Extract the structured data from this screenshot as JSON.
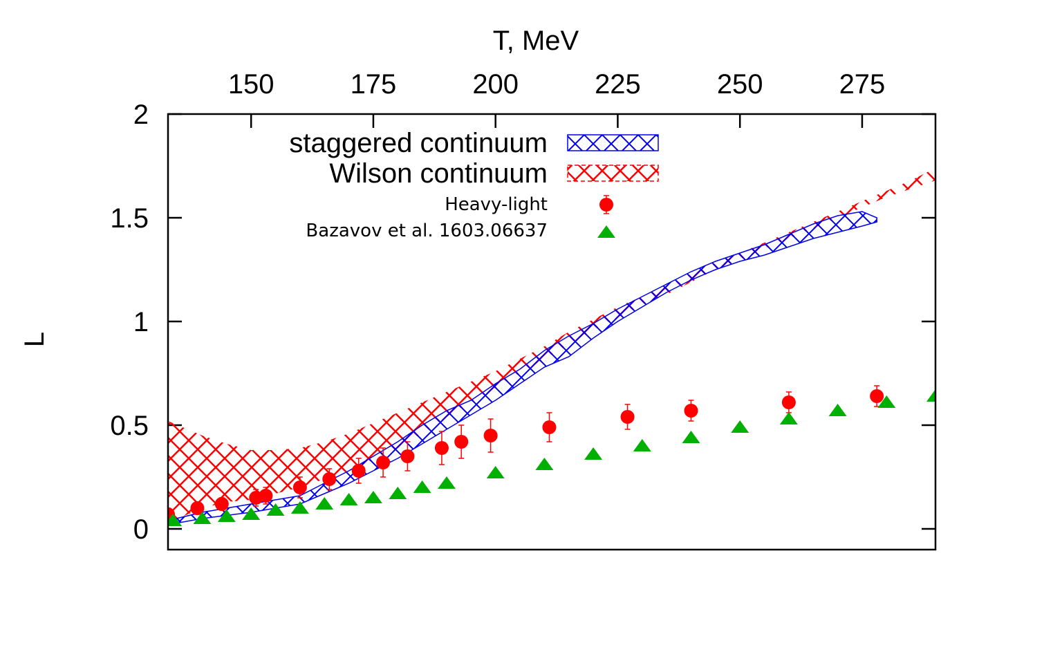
{
  "chart_data": {
    "type": "line",
    "xlabel": "T, MeV",
    "ylabel": "L",
    "xlim": [
      133,
      290
    ],
    "ylim": [
      -0.1,
      2.0
    ],
    "x_ticks": [
      150,
      175,
      200,
      225,
      250,
      275
    ],
    "y_ticks": [
      {
        "value": 0,
        "label": "0"
      },
      {
        "value": 0.5,
        "label": "0.5"
      },
      {
        "value": 1,
        "label": "1"
      },
      {
        "value": 1.5,
        "label": "1.5"
      },
      {
        "value": 2,
        "label": "2"
      }
    ],
    "x_axis_position": "top",
    "grid": false,
    "legend_placement": "top-left",
    "colors": {
      "staggered": "#0000ee",
      "wilson": "#ff0000",
      "heavy_light": "#ff0000",
      "bazavov": "#00b000"
    },
    "series": [
      {
        "name": "staggered continuum",
        "kind": "band",
        "hatch": "crosshatch",
        "x": [
          133,
          140,
          150,
          155,
          160,
          165,
          170,
          175,
          180,
          185,
          190,
          195,
          200,
          205,
          210,
          215,
          220,
          225,
          230,
          235,
          240,
          245,
          250,
          255,
          260,
          265,
          270,
          275,
          278
        ],
        "lower": [
          0.02,
          0.05,
          0.08,
          0.1,
          0.12,
          0.17,
          0.22,
          0.28,
          0.34,
          0.41,
          0.48,
          0.55,
          0.62,
          0.7,
          0.78,
          0.83,
          0.92,
          1.0,
          1.07,
          1.14,
          1.2,
          1.25,
          1.29,
          1.32,
          1.36,
          1.4,
          1.43,
          1.46,
          1.48
        ],
        "upper": [
          0.04,
          0.08,
          0.12,
          0.14,
          0.16,
          0.22,
          0.28,
          0.35,
          0.42,
          0.5,
          0.57,
          0.62,
          0.7,
          0.77,
          0.86,
          0.93,
          0.99,
          1.06,
          1.12,
          1.18,
          1.24,
          1.29,
          1.33,
          1.37,
          1.42,
          1.47,
          1.51,
          1.53,
          1.5
        ]
      },
      {
        "name": "Wilson continuum",
        "kind": "band",
        "hatch": "crosshatch",
        "x": [
          133,
          140,
          145,
          150,
          155,
          160,
          165,
          170,
          175,
          180,
          185,
          190,
          195,
          200,
          205,
          210,
          215,
          220,
          225,
          230,
          235,
          240,
          245,
          250,
          255,
          260,
          265,
          270,
          275,
          280,
          285,
          290
        ],
        "lower": [
          0.03,
          0.1,
          0.13,
          0.14,
          0.17,
          0.2,
          0.24,
          0.28,
          0.33,
          0.39,
          0.46,
          0.54,
          0.61,
          0.68,
          0.75,
          0.82,
          0.89,
          0.96,
          1.02,
          1.08,
          1.13,
          1.19,
          1.25,
          1.3,
          1.35,
          1.4,
          1.45,
          1.5,
          1.55,
          1.6,
          1.64,
          1.68
        ],
        "upper": [
          0.52,
          0.45,
          0.41,
          0.38,
          0.38,
          0.39,
          0.42,
          0.46,
          0.51,
          0.56,
          0.61,
          0.66,
          0.71,
          0.76,
          0.82,
          0.88,
          0.95,
          1.01,
          1.07,
          1.12,
          1.17,
          1.23,
          1.28,
          1.33,
          1.38,
          1.43,
          1.48,
          1.53,
          1.58,
          1.63,
          1.68,
          1.74
        ]
      },
      {
        "name": "Heavy-light",
        "kind": "points",
        "marker": "circle",
        "x": [
          133,
          139,
          144,
          151,
          153,
          160,
          166,
          172,
          177,
          182,
          189,
          193,
          199,
          211,
          227,
          240,
          260,
          278
        ],
        "y": [
          0.07,
          0.1,
          0.12,
          0.15,
          0.16,
          0.2,
          0.24,
          0.28,
          0.32,
          0.35,
          0.39,
          0.42,
          0.45,
          0.49,
          0.54,
          0.57,
          0.61,
          0.64
        ],
        "err": [
          0.03,
          0.03,
          0.03,
          0.04,
          0.04,
          0.05,
          0.05,
          0.06,
          0.07,
          0.07,
          0.08,
          0.08,
          0.08,
          0.07,
          0.06,
          0.05,
          0.05,
          0.05
        ]
      },
      {
        "name": "Bazavov et al. 1603.06637",
        "kind": "points",
        "marker": "triangle",
        "x": [
          134,
          140,
          145,
          150,
          155,
          160,
          165,
          170,
          175,
          180,
          185,
          190,
          200,
          210,
          220,
          230,
          240,
          250,
          260,
          270,
          280,
          290
        ],
        "y": [
          0.04,
          0.05,
          0.06,
          0.07,
          0.09,
          0.1,
          0.12,
          0.14,
          0.15,
          0.17,
          0.2,
          0.22,
          0.27,
          0.31,
          0.36,
          0.4,
          0.44,
          0.49,
          0.53,
          0.57,
          0.61,
          0.64
        ]
      }
    ]
  }
}
